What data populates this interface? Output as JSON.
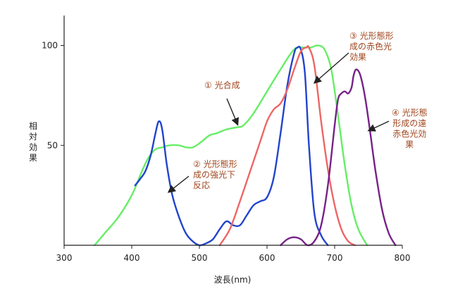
{
  "chart_data": {
    "type": "line",
    "title": "",
    "xlabel": "波長(nm)",
    "ylabel": "相対効果",
    "xlim": [
      300,
      800
    ],
    "ylim": [
      0,
      115
    ],
    "xticks": [
      300,
      400,
      500,
      600,
      700,
      800
    ],
    "yticks": [
      50,
      100
    ],
    "grid": false,
    "series": [
      {
        "color": "#66ee66",
        "x": [
          345,
          360,
          380,
          400,
          415,
          425,
          435,
          445,
          455,
          470,
          480,
          490,
          500,
          515,
          525,
          540,
          555,
          565,
          580,
          600,
          620,
          640,
          655,
          665,
          675,
          685,
          695,
          705,
          715,
          725,
          735,
          748
        ],
        "y": [
          0,
          6,
          14,
          25,
          37,
          44,
          48,
          49,
          50,
          50,
          49,
          49,
          51,
          55,
          56,
          58,
          59,
          60,
          66,
          77,
          88,
          98,
          99,
          99,
          100,
          98,
          88,
          65,
          40,
          20,
          8,
          0
        ]
      },
      {
        "color": "#2244cc",
        "x": [
          405,
          412,
          420,
          428,
          435,
          440,
          445,
          452,
          460,
          470,
          480,
          490,
          500,
          510,
          520,
          530,
          540,
          550,
          560,
          570,
          580,
          590,
          600,
          610,
          620,
          630,
          640,
          645,
          650,
          656,
          662,
          670,
          680,
          690
        ],
        "y": [
          30,
          33,
          37,
          45,
          56,
          62,
          58,
          40,
          25,
          14,
          6,
          2,
          0,
          1,
          3,
          8,
          12,
          10,
          10,
          15,
          20,
          22,
          24,
          34,
          56,
          80,
          96,
          99,
          98,
          86,
          50,
          16,
          5,
          0
        ]
      },
      {
        "color": "#ee6666",
        "x": [
          530,
          545,
          560,
          575,
          590,
          600,
          610,
          620,
          630,
          640,
          650,
          658,
          662,
          670,
          680,
          690,
          700,
          710,
          720,
          730
        ],
        "y": [
          0,
          8,
          22,
          37,
          52,
          62,
          68,
          71,
          78,
          88,
          97,
          99,
          99,
          90,
          62,
          38,
          20,
          8,
          2,
          0
        ]
      },
      {
        "color": "#772288",
        "x": [
          620,
          630,
          640,
          650,
          660,
          670,
          680,
          690,
          700,
          705,
          710,
          715,
          720,
          725,
          728,
          732,
          738,
          745,
          752,
          760,
          770,
          780,
          790
        ],
        "y": [
          0,
          3,
          4,
          3,
          0,
          2,
          10,
          30,
          60,
          73,
          76,
          77,
          76,
          79,
          85,
          88,
          85,
          74,
          58,
          38,
          18,
          6,
          0
        ]
      }
    ],
    "annotations": [
      {
        "text": "① 光合成",
        "x": 1
      },
      {
        "text": "② 光形態形\n成の強光下\n反応"
      },
      {
        "text": "③ 光形態形\n成の赤色光\n効果"
      },
      {
        "text": "④ 光形態\n形成の遠\n赤色光効\n果"
      }
    ]
  }
}
